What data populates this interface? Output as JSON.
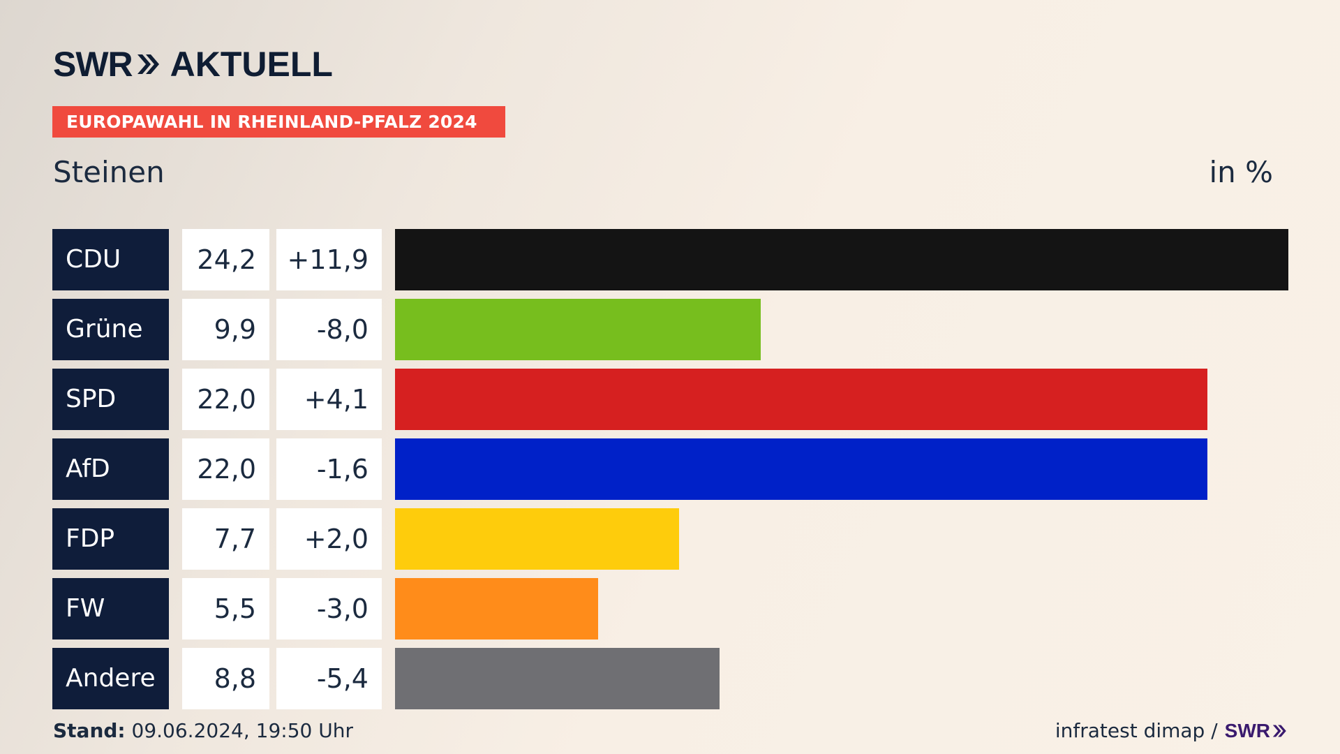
{
  "header": {
    "logo_swr": "SWR",
    "logo_aktuell": "AKTUELL",
    "banner": "EUROPAWAHL IN RHEINLAND-PFALZ 2024",
    "subtitle": "Steinen",
    "unit": "in %"
  },
  "chart_data": {
    "type": "bar",
    "orientation": "horizontal",
    "categories": [
      "CDU",
      "Grüne",
      "SPD",
      "AfD",
      "FDP",
      "FW",
      "Andere"
    ],
    "values": [
      24.2,
      9.9,
      22.0,
      22.0,
      7.7,
      5.5,
      8.8
    ],
    "value_labels": [
      "24,2",
      "9,9",
      "22,0",
      "22,0",
      "7,7",
      "5,5",
      "8,8"
    ],
    "changes": [
      "+11,9",
      "-8,0",
      "+4,1",
      "-1,6",
      "+2,0",
      "-3,0",
      "-5,4"
    ],
    "colors": [
      "#141414",
      "#77be1e",
      "#d62020",
      "#0021c8",
      "#fecc0c",
      "#ff8c1a",
      "#6f6f73"
    ],
    "xlim": [
      0,
      24.2
    ],
    "grid": false,
    "legend": "none"
  },
  "footer": {
    "stand_label": "Stand:",
    "stand_value": " 09.06.2024, 19:50 Uhr",
    "source": "infratest dimap /",
    "swr": "SWR"
  }
}
